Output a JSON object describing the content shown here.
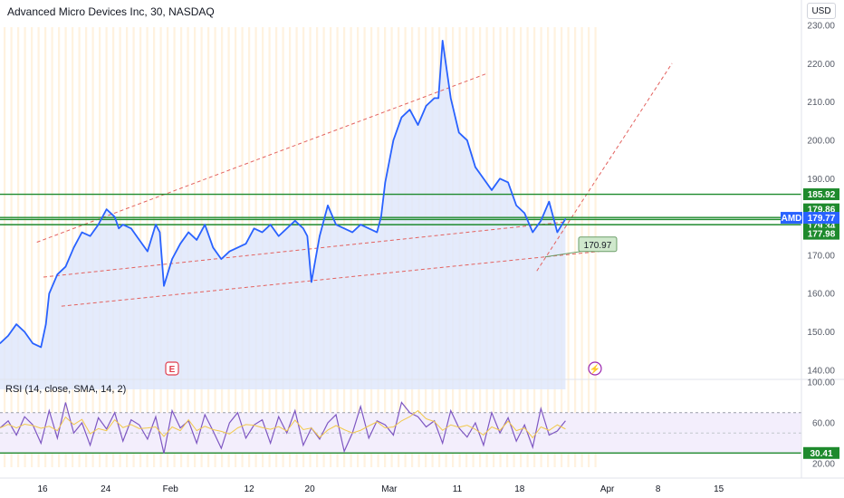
{
  "header": {
    "title": "Advanced Micro Devices Inc, 30, NASDAQ",
    "currency": "USD"
  },
  "rsi_label": "RSI (14, close, SMA, 14, 2)",
  "chart_data": [
    {
      "type": "line",
      "name": "AMD price",
      "ticker": "AMD",
      "xlim": [
        0,
        75
      ],
      "ylim": [
        135,
        230
      ],
      "price_ticks": [
        "230.00",
        "220.00",
        "210.00",
        "200.00",
        "190.00",
        "180.00",
        "170.00",
        "160.00",
        "150.00",
        "140.00"
      ],
      "date_ticks": [
        {
          "label": "16",
          "x": 5.2
        },
        {
          "label": "24",
          "x": 12.9
        },
        {
          "label": "Feb",
          "x": 20.8
        },
        {
          "label": "12",
          "x": 30.4
        },
        {
          "label": "20",
          "x": 37.8
        },
        {
          "label": "Mar",
          "x": 47.5
        },
        {
          "label": "11",
          "x": 55.8
        },
        {
          "label": "18",
          "x": 63.4
        },
        {
          "label": "Apr",
          "x": 74.1
        },
        {
          "label": "8",
          "x": 80.3
        },
        {
          "label": "15",
          "x": 87.7
        }
      ],
      "x": [
        0,
        1,
        2,
        3,
        4,
        5,
        5.6,
        6,
        7,
        8,
        9,
        10,
        11,
        12,
        13,
        14,
        14.5,
        15,
        16,
        17,
        18,
        19,
        19.5,
        20,
        21,
        22,
        23,
        24,
        25,
        26,
        27,
        28,
        29,
        30,
        31,
        32,
        33,
        34,
        35,
        36,
        37,
        37.5,
        38,
        39,
        40,
        41,
        42,
        43,
        44,
        45,
        46,
        46.5,
        47,
        48,
        49,
        50,
        51,
        52,
        53,
        53.5,
        54,
        55,
        56,
        57,
        58,
        59,
        60,
        61,
        62,
        63,
        64,
        65,
        66,
        67,
        67.5,
        68,
        69
      ],
      "values": [
        147,
        149,
        152,
        150,
        147,
        146,
        152,
        160,
        165,
        167,
        172,
        176,
        175,
        178,
        182,
        180,
        177,
        178,
        177,
        174,
        171,
        178,
        176,
        162,
        169,
        173,
        176,
        174,
        178,
        172,
        169,
        171,
        172,
        173,
        177,
        176,
        178,
        175,
        177,
        179,
        177,
        175,
        163,
        175,
        183,
        178,
        177,
        176,
        178,
        177,
        176,
        180,
        189,
        200,
        206,
        208,
        204,
        209,
        211,
        211,
        226,
        211,
        202,
        200,
        193,
        190,
        187,
        190,
        189,
        183,
        181,
        176,
        179,
        184,
        180,
        176,
        179.5
      ],
      "support_lines": [
        185.92,
        179.86,
        179.34,
        177.98
      ],
      "last_price": 179.77,
      "target_label": 170.97,
      "events": [
        "E",
        "⚡"
      ],
      "trend_lines": [
        {
          "from": [
            4.5,
            173.4
          ],
          "to": [
            59.5,
            217.5
          ]
        },
        {
          "from": [
            5.3,
            164.3
          ],
          "to": [
            69,
            178.7
          ]
        },
        {
          "from": [
            7.5,
            156.7
          ],
          "to": [
            74,
            171.2
          ]
        },
        {
          "from": [
            65.5,
            165.9
          ],
          "to": [
            82,
            220.1
          ]
        }
      ]
    },
    {
      "type": "line",
      "name": "RSI",
      "ylim": [
        20,
        100
      ],
      "ticks": [
        "100.00",
        "60.00",
        "20.00"
      ],
      "overbought": 70,
      "oversold": 30.41,
      "x": [
        0,
        1,
        2,
        3,
        4,
        5,
        6,
        7,
        8,
        9,
        10,
        11,
        12,
        13,
        14,
        15,
        16,
        17,
        18,
        19,
        20,
        21,
        22,
        23,
        24,
        25,
        26,
        27,
        28,
        29,
        30,
        31,
        32,
        33,
        34,
        35,
        36,
        37,
        38,
        39,
        40,
        41,
        42,
        43,
        44,
        45,
        46,
        47,
        48,
        49,
        50,
        51,
        52,
        53,
        54,
        55,
        56,
        57,
        58,
        59,
        60,
        61,
        62,
        63,
        64,
        65,
        66,
        67,
        68,
        69
      ],
      "values": [
        55,
        62,
        48,
        66,
        58,
        40,
        72,
        45,
        80,
        50,
        60,
        38,
        65,
        54,
        70,
        42,
        63,
        58,
        44,
        66,
        30,
        72,
        55,
        62,
        40,
        68,
        52,
        35,
        60,
        70,
        45,
        58,
        63,
        40,
        66,
        50,
        72,
        38,
        55,
        44,
        60,
        68,
        32,
        50,
        76,
        45,
        62,
        58,
        48,
        80,
        70,
        66,
        56,
        62,
        40,
        72,
        55,
        46,
        60,
        38,
        70,
        50,
        65,
        42,
        58,
        36,
        74,
        48,
        52,
        62
      ]
    }
  ]
}
